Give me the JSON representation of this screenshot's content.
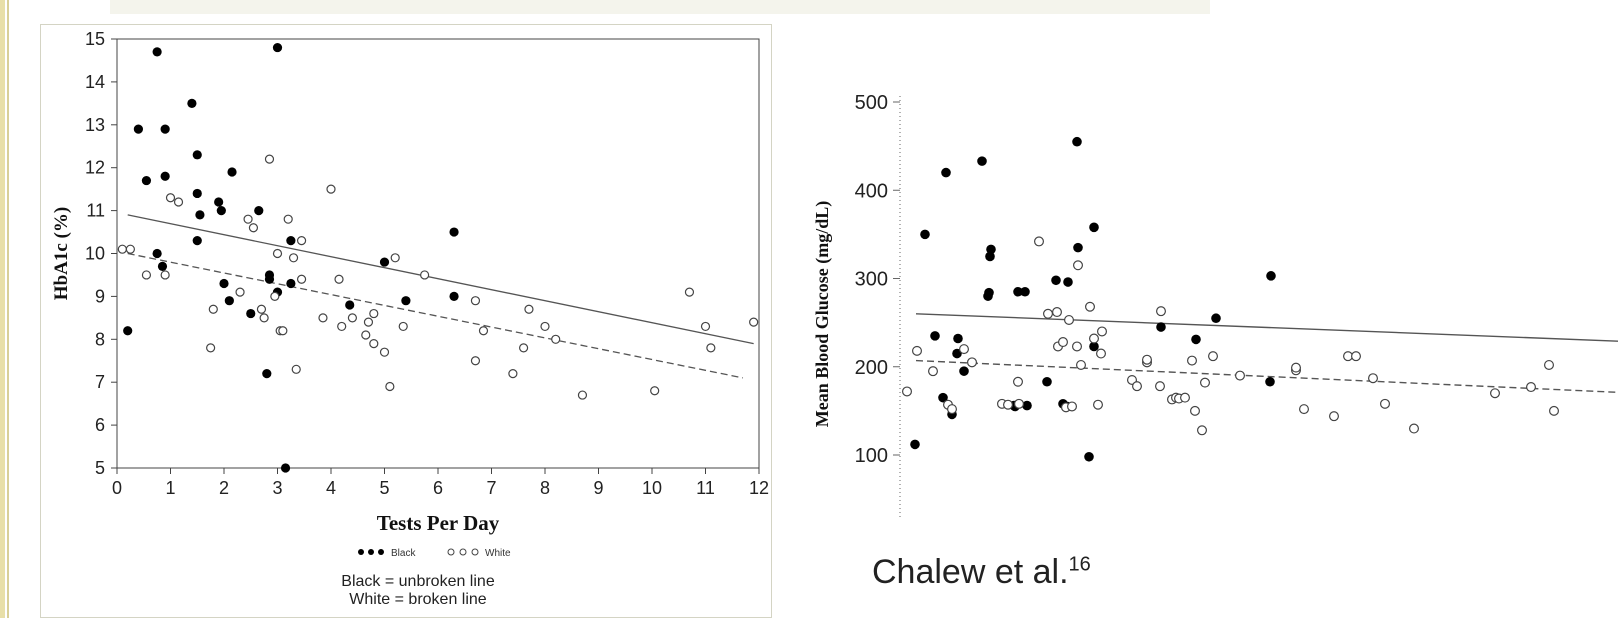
{
  "citation": {
    "text": "Chalew et al.",
    "sup": "16"
  },
  "chart_data": [
    {
      "type": "scatter",
      "xlabel": "Tests Per Day",
      "ylabel": "HbA1c (%)",
      "xlim": [
        0,
        12
      ],
      "ylim": [
        5,
        15
      ],
      "x_ticks": [
        "0",
        "1",
        "2",
        "3",
        "4",
        "5",
        "6",
        "7",
        "8",
        "9",
        "10",
        "11",
        "12"
      ],
      "y_ticks": [
        "5",
        "6",
        "7",
        "8",
        "9",
        "10",
        "11",
        "12",
        "13",
        "14",
        "15"
      ],
      "grid": false,
      "legend": {
        "black": "Black",
        "white": "White"
      },
      "notes": [
        "Black = unbroken line",
        "White = broken line"
      ],
      "series": [
        {
          "name": "Black",
          "marker": "filled",
          "points": [
            [
              0.2,
              8.2
            ],
            [
              0.4,
              12.9
            ],
            [
              0.55,
              11.7
            ],
            [
              0.75,
              10.0
            ],
            [
              0.75,
              14.7
            ],
            [
              0.85,
              9.7
            ],
            [
              0.9,
              12.9
            ],
            [
              0.9,
              11.8
            ],
            [
              1.4,
              13.5
            ],
            [
              1.5,
              12.3
            ],
            [
              1.5,
              11.4
            ],
            [
              1.5,
              10.3
            ],
            [
              1.55,
              10.9
            ],
            [
              1.9,
              11.2
            ],
            [
              1.95,
              11.0
            ],
            [
              2.0,
              9.3
            ],
            [
              2.1,
              8.9
            ],
            [
              2.15,
              11.9
            ],
            [
              2.5,
              8.6
            ],
            [
              2.65,
              11.0
            ],
            [
              2.8,
              7.2
            ],
            [
              2.85,
              9.5
            ],
            [
              2.85,
              9.4
            ],
            [
              3.0,
              9.1
            ],
            [
              3.0,
              14.8
            ],
            [
              3.15,
              5.0
            ],
            [
              3.25,
              9.3
            ],
            [
              3.25,
              10.3
            ],
            [
              4.35,
              8.8
            ],
            [
              5.0,
              9.8
            ],
            [
              5.4,
              8.9
            ],
            [
              6.3,
              9.0
            ],
            [
              6.3,
              10.5
            ]
          ],
          "fit": [
            [
              0.2,
              10.9
            ],
            [
              11.9,
              7.9
            ]
          ]
        },
        {
          "name": "White",
          "marker": "open",
          "points": [
            [
              0.1,
              10.1
            ],
            [
              0.25,
              10.1
            ],
            [
              0.55,
              9.5
            ],
            [
              0.9,
              9.5
            ],
            [
              1.0,
              11.3
            ],
            [
              1.15,
              11.2
            ],
            [
              1.75,
              7.8
            ],
            [
              1.8,
              8.7
            ],
            [
              2.3,
              9.1
            ],
            [
              2.45,
              10.8
            ],
            [
              2.55,
              10.6
            ],
            [
              2.7,
              8.7
            ],
            [
              2.75,
              8.5
            ],
            [
              2.85,
              12.2
            ],
            [
              2.95,
              9.0
            ],
            [
              3.0,
              10.0
            ],
            [
              3.05,
              8.2
            ],
            [
              3.1,
              8.2
            ],
            [
              3.2,
              10.8
            ],
            [
              3.3,
              9.9
            ],
            [
              3.35,
              7.3
            ],
            [
              3.45,
              10.3
            ],
            [
              3.45,
              9.4
            ],
            [
              3.85,
              8.5
            ],
            [
              4.0,
              11.5
            ],
            [
              4.15,
              9.4
            ],
            [
              4.2,
              8.3
            ],
            [
              4.4,
              8.5
            ],
            [
              4.65,
              8.1
            ],
            [
              4.7,
              8.4
            ],
            [
              4.8,
              7.9
            ],
            [
              4.8,
              8.6
            ],
            [
              5.0,
              7.7
            ],
            [
              5.1,
              6.9
            ],
            [
              5.2,
              9.9
            ],
            [
              5.35,
              8.3
            ],
            [
              5.75,
              9.5
            ],
            [
              6.7,
              8.9
            ],
            [
              6.7,
              7.5
            ],
            [
              6.85,
              8.2
            ],
            [
              7.4,
              7.2
            ],
            [
              7.6,
              7.8
            ],
            [
              7.7,
              8.7
            ],
            [
              8.0,
              8.3
            ],
            [
              8.2,
              8.0
            ],
            [
              8.7,
              6.7
            ],
            [
              10.05,
              6.8
            ],
            [
              10.7,
              9.1
            ],
            [
              11.0,
              8.3
            ],
            [
              11.1,
              7.8
            ],
            [
              11.9,
              8.4
            ]
          ],
          "fit": [
            [
              0.2,
              10.0
            ],
            [
              11.7,
              7.1
            ]
          ]
        }
      ]
    },
    {
      "type": "scatter",
      "xlabel": "",
      "ylabel": "Mean Blood Glucose (mg/dL)",
      "ylim": [
        35,
        515
      ],
      "y_ticks": [
        "100",
        "200",
        "300",
        "400",
        "500"
      ],
      "grid": false,
      "series": [
        {
          "name": "Black",
          "marker": "filled",
          "points": [
            [
              915,
              112
            ],
            [
              925,
              350
            ],
            [
              935,
              235
            ],
            [
              943,
              165
            ],
            [
              946,
              420
            ],
            [
              952,
              146
            ],
            [
              957,
              215
            ],
            [
              958,
              232
            ],
            [
              964,
              195
            ],
            [
              982,
              433
            ],
            [
              988,
              280
            ],
            [
              989,
              284
            ],
            [
              990,
              325
            ],
            [
              991,
              333
            ],
            [
              1014,
              156
            ],
            [
              1015,
              155
            ],
            [
              1018,
              285
            ],
            [
              1025,
              285
            ],
            [
              1027,
              156
            ],
            [
              1047,
              183
            ],
            [
              1056,
              298
            ],
            [
              1063,
              158
            ],
            [
              1067,
              155
            ],
            [
              1068,
              296
            ],
            [
              1077,
              455
            ],
            [
              1078,
              335
            ],
            [
              1089,
              98
            ],
            [
              1094,
              223
            ],
            [
              1094,
              358
            ],
            [
              1161,
              245
            ],
            [
              1196,
              231
            ],
            [
              1216,
              255
            ],
            [
              1270,
              183
            ],
            [
              1271,
              303
            ]
          ],
          "fit": [
            [
              916,
              260
            ],
            [
              1618,
              229
            ]
          ]
        },
        {
          "name": "White",
          "marker": "open",
          "points": [
            [
              907,
              172
            ],
            [
              917,
              218
            ],
            [
              933,
              195
            ],
            [
              948,
              157
            ],
            [
              952,
              152
            ],
            [
              964,
              220
            ],
            [
              972,
              205
            ],
            [
              1002,
              158
            ],
            [
              1008,
              157
            ],
            [
              1018,
              183
            ],
            [
              1019,
              158
            ],
            [
              1039,
              342
            ],
            [
              1048,
              260
            ],
            [
              1057,
              262
            ],
            [
              1058,
              223
            ],
            [
              1063,
              228
            ],
            [
              1066,
              154
            ],
            [
              1069,
              253
            ],
            [
              1072,
              155
            ],
            [
              1077,
              223
            ],
            [
              1078,
              315
            ],
            [
              1081,
              202
            ],
            [
              1090,
              268
            ],
            [
              1094,
              232
            ],
            [
              1098,
              157
            ],
            [
              1101,
              215
            ],
            [
              1102,
              240
            ],
            [
              1132,
              185
            ],
            [
              1137,
              178
            ],
            [
              1147,
              205
            ],
            [
              1147,
              208
            ],
            [
              1160,
              178
            ],
            [
              1161,
              263
            ],
            [
              1172,
              163
            ],
            [
              1176,
              165
            ],
            [
              1179,
              164
            ],
            [
              1185,
              165
            ],
            [
              1192,
              207
            ],
            [
              1195,
              150
            ],
            [
              1202,
              128
            ],
            [
              1205,
              182
            ],
            [
              1213,
              212
            ],
            [
              1240,
              190
            ],
            [
              1296,
              196
            ],
            [
              1296,
              199
            ],
            [
              1304,
              152
            ],
            [
              1334,
              144
            ],
            [
              1348,
              212
            ],
            [
              1356,
              212
            ],
            [
              1373,
              187
            ],
            [
              1385,
              158
            ],
            [
              1414,
              130
            ],
            [
              1495,
              170
            ],
            [
              1531,
              177
            ],
            [
              1549,
              202
            ],
            [
              1554,
              150
            ]
          ],
          "fit": [
            [
              916,
              207
            ],
            [
              1618,
              171
            ]
          ]
        }
      ]
    }
  ]
}
